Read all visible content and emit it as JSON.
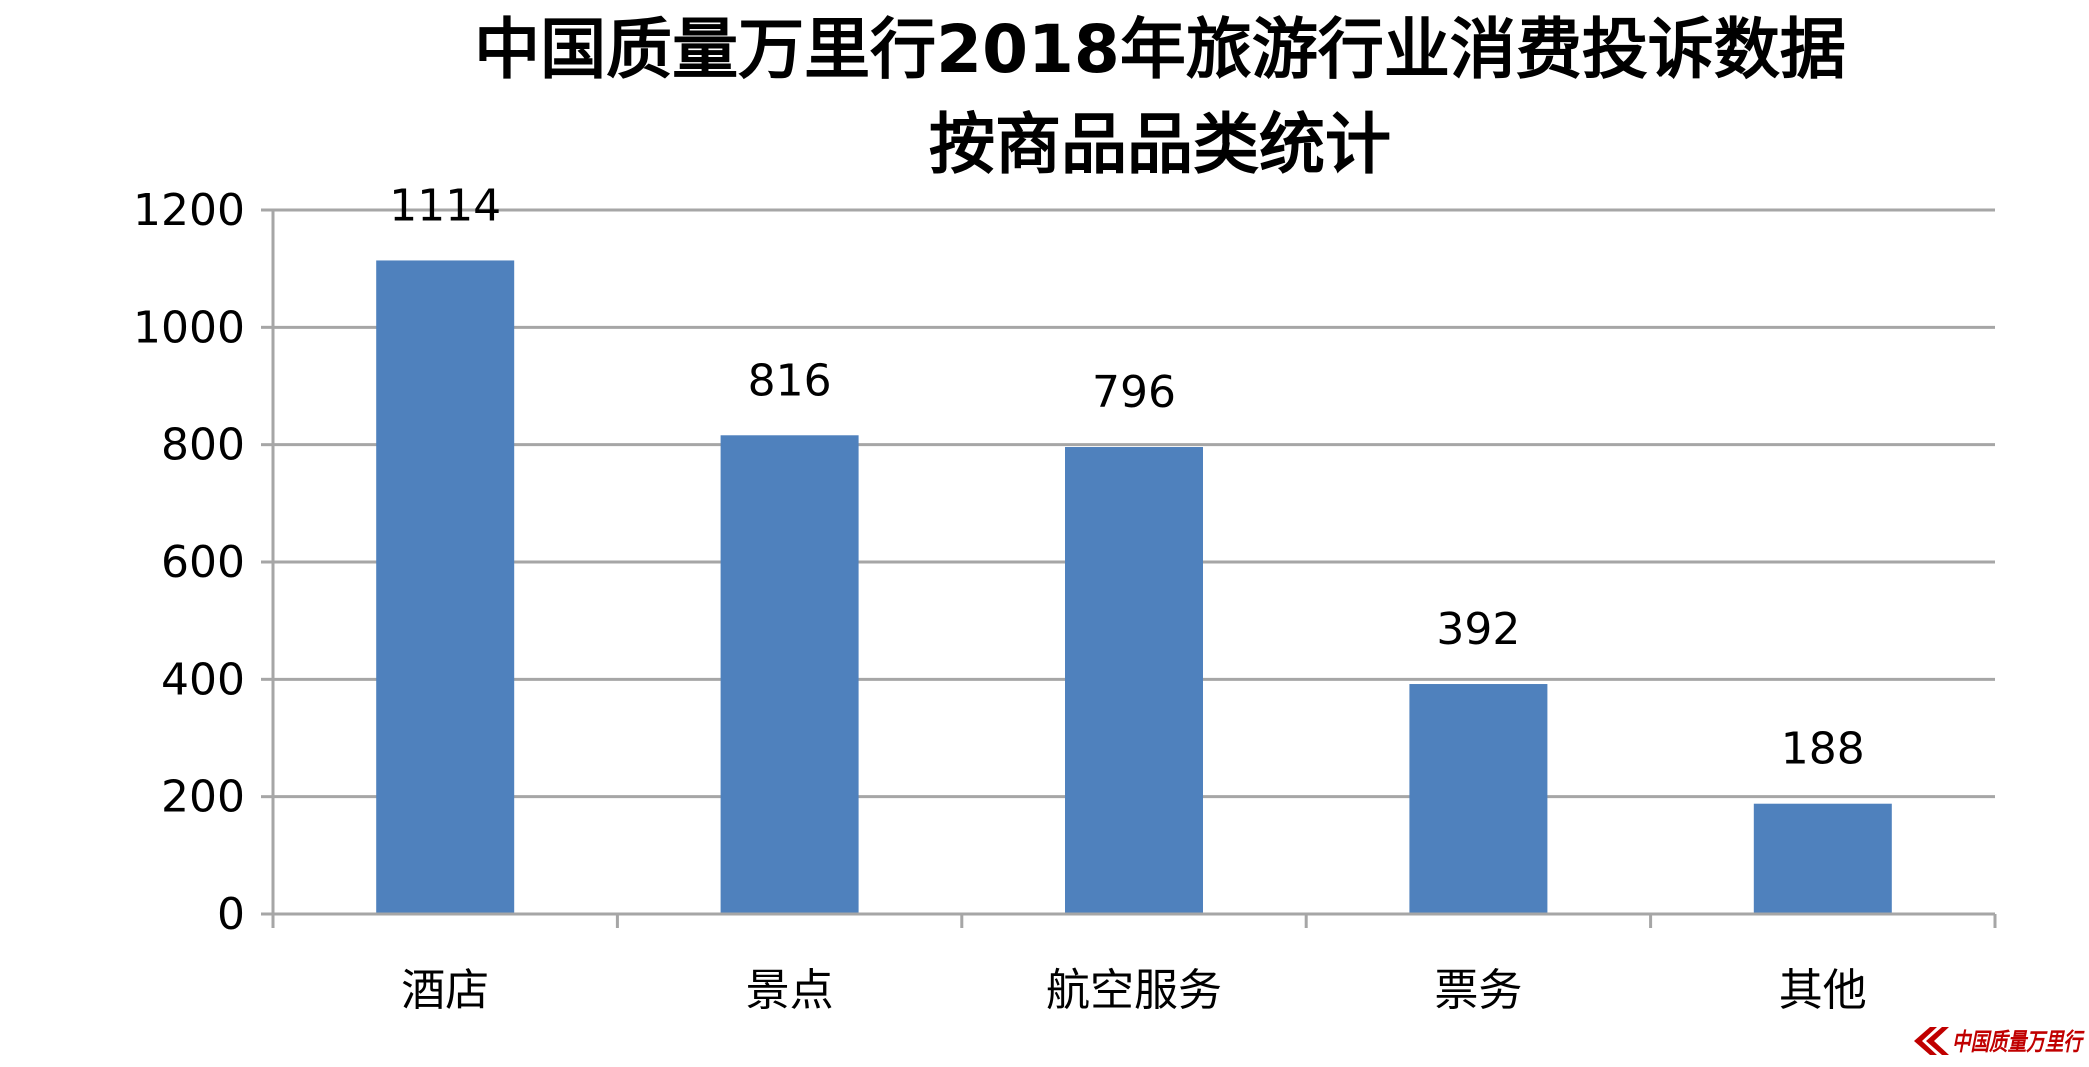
{
  "chart_data": {
    "type": "bar",
    "title": [
      "中国质量万里行2018年旅游行业消费投诉数据",
      "按商品品类统计"
    ],
    "categories": [
      "酒店",
      "景点",
      "航空服务",
      "票务",
      "其他"
    ],
    "values": [
      1114,
      816,
      796,
      392,
      188
    ],
    "data_labels": [
      "1114",
      "816",
      "796",
      "392",
      "188"
    ],
    "xlabel": "",
    "ylabel": "",
    "ylim": [
      0,
      1200
    ],
    "yticks": [
      0,
      200,
      400,
      600,
      800,
      1000,
      1200
    ],
    "ytick_labels": [
      "0",
      "200",
      "400",
      "600",
      "800",
      "1000",
      "1200"
    ],
    "grid": true,
    "legend": "none",
    "bar_color": "#4F81BD",
    "grid_color": "#A6A6A6"
  },
  "watermark": {
    "text": "中国质量万里行",
    "color": "#C00000"
  }
}
